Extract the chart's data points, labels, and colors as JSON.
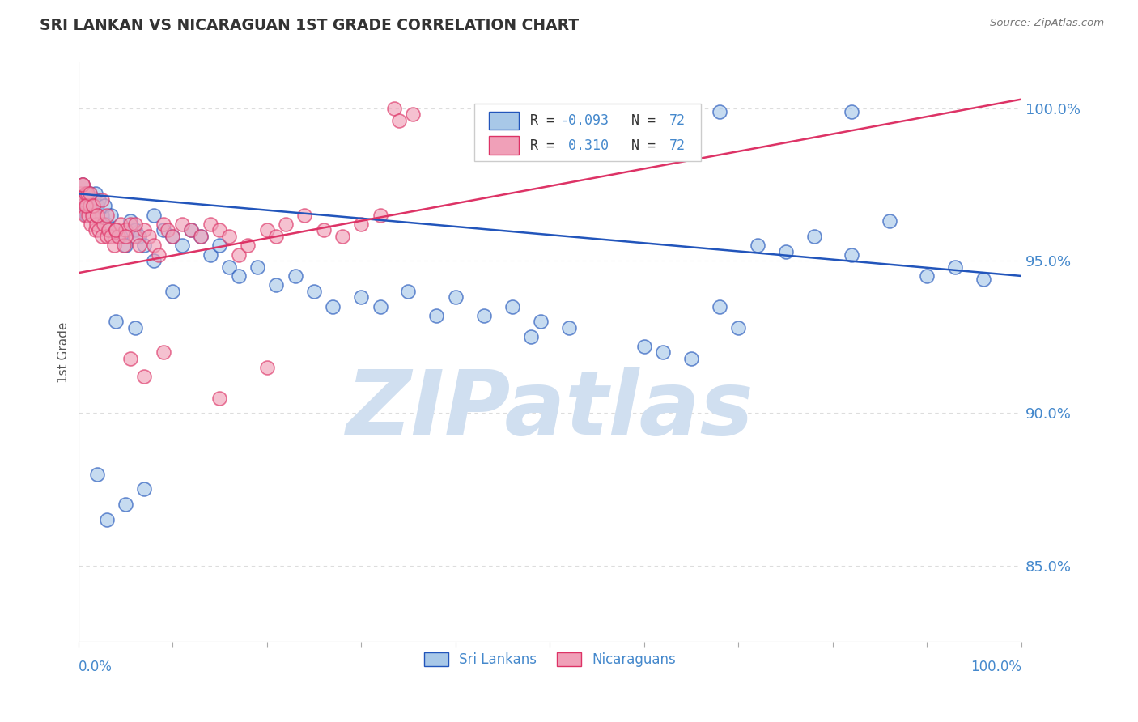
{
  "title": "SRI LANKAN VS NICARAGUAN 1ST GRADE CORRELATION CHART",
  "source": "Source: ZipAtlas.com",
  "ylabel": "1st Grade",
  "ytick_values": [
    0.85,
    0.9,
    0.95,
    1.0
  ],
  "xlim": [
    0.0,
    1.0
  ],
  "ylim": [
    0.825,
    1.015
  ],
  "r_blue": -0.093,
  "r_pink": 0.31,
  "n_blue": 72,
  "n_pink": 72,
  "legend_label_blue": "Sri Lankans",
  "legend_label_pink": "Nicaraguans",
  "color_blue": "#a8c8e8",
  "color_pink": "#f0a0b8",
  "color_blue_line": "#2255bb",
  "color_pink_line": "#dd3366",
  "watermark_text": "ZIPatlas",
  "watermark_color": "#d0dff0",
  "title_color": "#333333",
  "axis_label_color": "#4488cc",
  "grid_color": "#dddddd",
  "blue_trend_start": 0.972,
  "blue_trend_end": 0.945,
  "pink_trend_start": 0.946,
  "pink_trend_end": 1.003,
  "blue_x": [
    0.003,
    0.005,
    0.007,
    0.008,
    0.009,
    0.01,
    0.011,
    0.012,
    0.014,
    0.016,
    0.018,
    0.02,
    0.022,
    0.025,
    0.028,
    0.03,
    0.035,
    0.04,
    0.045,
    0.05,
    0.055,
    0.06,
    0.065,
    0.07,
    0.08,
    0.09,
    0.1,
    0.11,
    0.12,
    0.13,
    0.14,
    0.15,
    0.16,
    0.17,
    0.19,
    0.21,
    0.23,
    0.25,
    0.27,
    0.3,
    0.32,
    0.35,
    0.38,
    0.4,
    0.43,
    0.46,
    0.49,
    0.52,
    0.48,
    0.6,
    0.62,
    0.65,
    0.68,
    0.7,
    0.72,
    0.75,
    0.78,
    0.82,
    0.86,
    0.9,
    0.93,
    0.96,
    0.68,
    0.82,
    0.04,
    0.06,
    0.08,
    0.1,
    0.02,
    0.03,
    0.05,
    0.07
  ],
  "blue_y": [
    0.97,
    0.975,
    0.968,
    0.972,
    0.965,
    0.97,
    0.968,
    0.972,
    0.968,
    0.965,
    0.972,
    0.968,
    0.97,
    0.965,
    0.968,
    0.962,
    0.965,
    0.96,
    0.958,
    0.955,
    0.963,
    0.96,
    0.958,
    0.955,
    0.965,
    0.96,
    0.958,
    0.955,
    0.96,
    0.958,
    0.952,
    0.955,
    0.948,
    0.945,
    0.948,
    0.942,
    0.945,
    0.94,
    0.935,
    0.938,
    0.935,
    0.94,
    0.932,
    0.938,
    0.932,
    0.935,
    0.93,
    0.928,
    0.925,
    0.922,
    0.92,
    0.918,
    0.935,
    0.928,
    0.955,
    0.953,
    0.958,
    0.952,
    0.963,
    0.945,
    0.948,
    0.944,
    0.999,
    0.999,
    0.93,
    0.928,
    0.95,
    0.94,
    0.88,
    0.865,
    0.87,
    0.875
  ],
  "pink_x": [
    0.003,
    0.004,
    0.005,
    0.006,
    0.007,
    0.008,
    0.009,
    0.01,
    0.011,
    0.012,
    0.013,
    0.015,
    0.016,
    0.018,
    0.019,
    0.02,
    0.022,
    0.025,
    0.027,
    0.03,
    0.032,
    0.035,
    0.038,
    0.04,
    0.042,
    0.045,
    0.048,
    0.05,
    0.055,
    0.06,
    0.065,
    0.07,
    0.075,
    0.08,
    0.085,
    0.09,
    0.095,
    0.1,
    0.11,
    0.12,
    0.13,
    0.14,
    0.15,
    0.16,
    0.17,
    0.18,
    0.2,
    0.21,
    0.22,
    0.24,
    0.26,
    0.28,
    0.3,
    0.32,
    0.005,
    0.008,
    0.012,
    0.016,
    0.02,
    0.025,
    0.03,
    0.04,
    0.05,
    0.06,
    0.335,
    0.355,
    0.34,
    0.2,
    0.15,
    0.09,
    0.07,
    0.055
  ],
  "pink_y": [
    0.972,
    0.968,
    0.975,
    0.97,
    0.965,
    0.972,
    0.968,
    0.972,
    0.965,
    0.968,
    0.962,
    0.965,
    0.968,
    0.96,
    0.962,
    0.965,
    0.96,
    0.958,
    0.962,
    0.958,
    0.96,
    0.958,
    0.955,
    0.96,
    0.958,
    0.962,
    0.955,
    0.96,
    0.962,
    0.958,
    0.955,
    0.96,
    0.958,
    0.955,
    0.952,
    0.962,
    0.96,
    0.958,
    0.962,
    0.96,
    0.958,
    0.962,
    0.96,
    0.958,
    0.952,
    0.955,
    0.96,
    0.958,
    0.962,
    0.965,
    0.96,
    0.958,
    0.962,
    0.965,
    0.975,
    0.968,
    0.972,
    0.968,
    0.965,
    0.97,
    0.965,
    0.96,
    0.958,
    0.962,
    1.0,
    0.998,
    0.996,
    0.915,
    0.905,
    0.92,
    0.912,
    0.918
  ]
}
